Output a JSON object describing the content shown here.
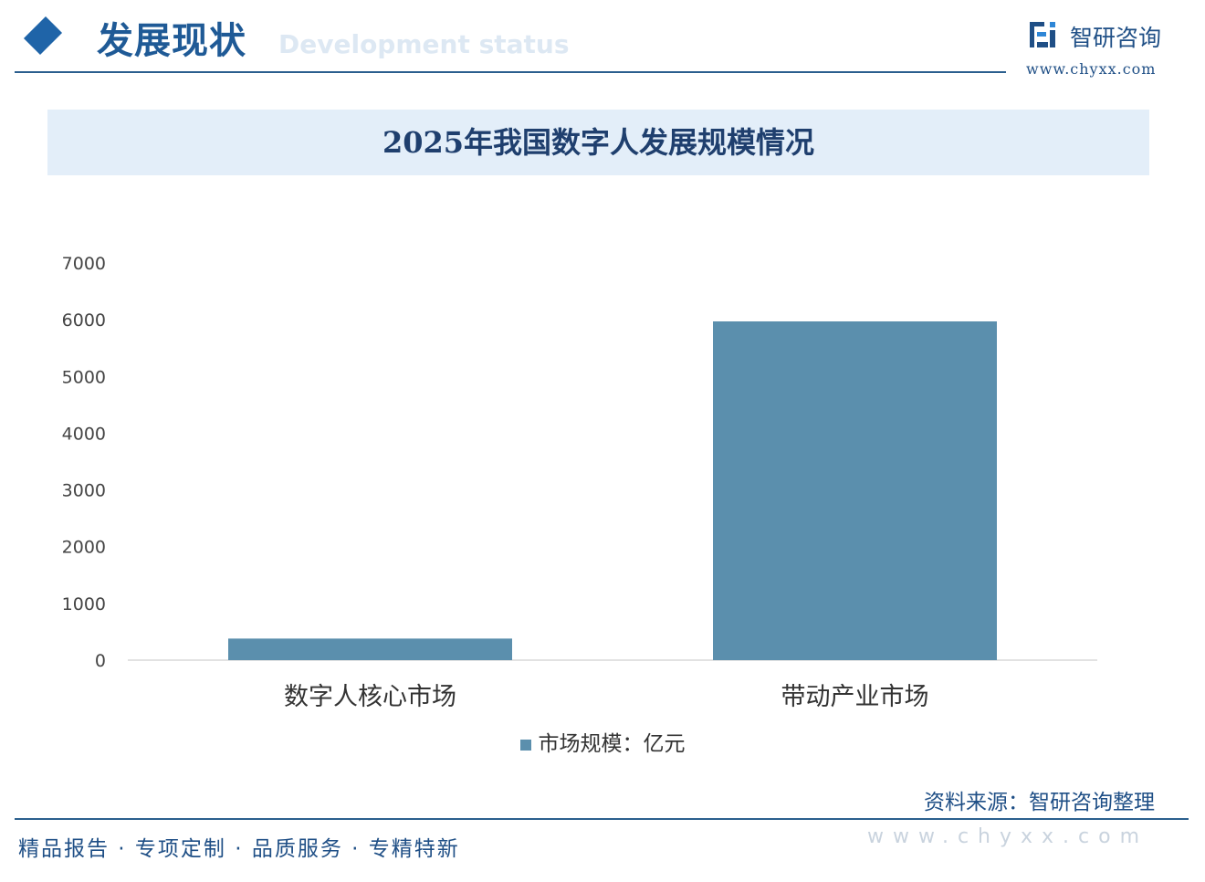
{
  "header": {
    "section_title": "发展现状",
    "section_subtitle": "Development status",
    "brand_name": "智研咨询",
    "brand_url": "www.chyxx.com"
  },
  "chart_data": {
    "type": "bar",
    "title": "2025年我国数字人发展规模情况",
    "categories": [
      "数字人核心市场",
      "带动产业市场"
    ],
    "series": [
      {
        "name": "市场规模：亿元",
        "values": [
          380,
          5970
        ],
        "color": "#5b8fad"
      }
    ],
    "yticks": [
      "0",
      "1000",
      "2000",
      "3000",
      "4000",
      "5000",
      "6000",
      "7000"
    ],
    "ylim": [
      0,
      7000
    ],
    "grid": false,
    "legend": "bottom"
  },
  "footer": {
    "slogan": "精品报告 · 专项定制 · 品质服务 · 专精特新",
    "source": "资料来源：智研咨询整理",
    "url": "www.chyxx.com"
  }
}
